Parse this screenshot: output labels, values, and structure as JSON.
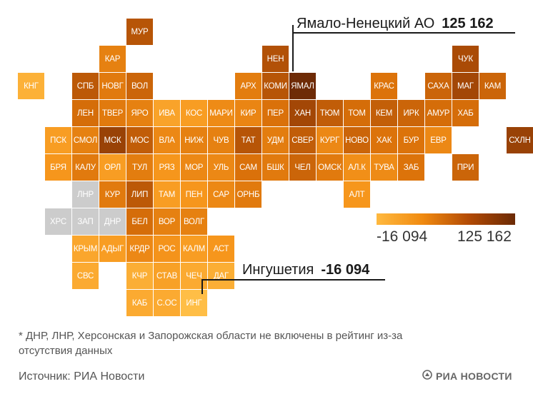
{
  "colors": {
    "missing": "#cccccc",
    "scale_low": "#ffb93f",
    "scale_high": "#6b2a05"
  },
  "regions": [
    {
      "label": "МУР",
      "tone": 0.7
    },
    {
      "label": "КАР",
      "tone": 0.45
    },
    {
      "label": "НЕН",
      "tone": 0.72
    },
    {
      "label": "ЧУК",
      "tone": 0.75
    },
    {
      "label": "КНГ",
      "tone": 0.1
    },
    {
      "label": "СПБ",
      "tone": 0.68
    },
    {
      "label": "НОВГ",
      "tone": 0.5
    },
    {
      "label": "ВОЛ",
      "tone": 0.62
    },
    {
      "label": "АРХ",
      "tone": 0.48
    },
    {
      "label": "КОМИ",
      "tone": 0.7
    },
    {
      "label": "ЯМАЛ",
      "tone": 1.0
    },
    {
      "label": "КРАС",
      "tone": 0.55
    },
    {
      "label": "САХА",
      "tone": 0.62
    },
    {
      "label": "МАГ",
      "tone": 0.78
    },
    {
      "label": "КАМ",
      "tone": 0.62
    },
    {
      "label": "ЛЕН",
      "tone": 0.58
    },
    {
      "label": "ТВЕР",
      "tone": 0.5
    },
    {
      "label": "ЯРО",
      "tone": 0.45
    },
    {
      "label": "ИВА",
      "tone": 0.2
    },
    {
      "label": "КОС",
      "tone": 0.25
    },
    {
      "label": "МАРИ",
      "tone": 0.38
    },
    {
      "label": "КИР",
      "tone": 0.42
    },
    {
      "label": "ПЕР",
      "tone": 0.56
    },
    {
      "label": "ХАН",
      "tone": 0.78
    },
    {
      "label": "ТЮМ",
      "tone": 0.66
    },
    {
      "label": "ТОМ",
      "tone": 0.58
    },
    {
      "label": "КЕМ",
      "tone": 0.65
    },
    {
      "label": "ИРК",
      "tone": 0.62
    },
    {
      "label": "АМУР",
      "tone": 0.58
    },
    {
      "label": "ХАБ",
      "tone": 0.58
    },
    {
      "label": "ПСК",
      "tone": 0.25
    },
    {
      "label": "СМОЛ",
      "tone": 0.45
    },
    {
      "label": "МСК",
      "tone": 0.82
    },
    {
      "label": "МОС",
      "tone": 0.66
    },
    {
      "label": "ВЛА",
      "tone": 0.4
    },
    {
      "label": "НИЖ",
      "tone": 0.45
    },
    {
      "label": "ЧУВ",
      "tone": 0.45
    },
    {
      "label": "ТАТ",
      "tone": 0.7
    },
    {
      "label": "УДМ",
      "tone": 0.48
    },
    {
      "label": "СВЕР",
      "tone": 0.66
    },
    {
      "label": "КУРГ",
      "tone": 0.4
    },
    {
      "label": "НОВО",
      "tone": 0.62
    },
    {
      "label": "ХАК",
      "tone": 0.55
    },
    {
      "label": "БУР",
      "tone": 0.55
    },
    {
      "label": "ЕВР",
      "tone": 0.4
    },
    {
      "label": "СХЛН",
      "tone": 0.82
    },
    {
      "label": "БРЯ",
      "tone": 0.3
    },
    {
      "label": "КАЛУ",
      "tone": 0.5
    },
    {
      "label": "ОРЛ",
      "tone": 0.25
    },
    {
      "label": "ТУЛ",
      "tone": 0.48
    },
    {
      "label": "РЯЗ",
      "tone": 0.3
    },
    {
      "label": "МОР",
      "tone": 0.4
    },
    {
      "label": "УЛЬ",
      "tone": 0.4
    },
    {
      "label": "САМ",
      "tone": 0.56
    },
    {
      "label": "БШК",
      "tone": 0.5
    },
    {
      "label": "ЧЕЛ",
      "tone": 0.62
    },
    {
      "label": "ОМСК",
      "tone": 0.5
    },
    {
      "label": "АЛ.К",
      "tone": 0.35
    },
    {
      "label": "ТУВА",
      "tone": 0.38
    },
    {
      "label": "ЗАБ",
      "tone": 0.55
    },
    {
      "label": "ПРИ",
      "tone": 0.62
    },
    {
      "label": "ЛНР",
      "tone": null
    },
    {
      "label": "КУР",
      "tone": 0.5
    },
    {
      "label": "ЛИП",
      "tone": 0.68
    },
    {
      "label": "ТАМ",
      "tone": 0.25
    },
    {
      "label": "ПЕН",
      "tone": 0.3
    },
    {
      "label": "САР",
      "tone": 0.4
    },
    {
      "label": "ОРНБ",
      "tone": 0.5
    },
    {
      "label": "АЛТ",
      "tone": 0.3
    },
    {
      "label": "ХРС",
      "tone": null
    },
    {
      "label": "ЗАП",
      "tone": null
    },
    {
      "label": "ДНР",
      "tone": null
    },
    {
      "label": "БЕЛ",
      "tone": 0.58
    },
    {
      "label": "ВОР",
      "tone": 0.45
    },
    {
      "label": "ВОЛГ",
      "tone": 0.45
    },
    {
      "label": "КРЫМ",
      "tone": 0.18
    },
    {
      "label": "АДЫГ",
      "tone": 0.25
    },
    {
      "label": "КРДР",
      "tone": 0.4
    },
    {
      "label": "РОС",
      "tone": 0.32
    },
    {
      "label": "КАЛМ",
      "tone": 0.25
    },
    {
      "label": "АСТ",
      "tone": 0.3
    },
    {
      "label": "СВС",
      "tone": 0.15
    },
    {
      "label": "КЧР",
      "tone": 0.12
    },
    {
      "label": "СТАВ",
      "tone": 0.22
    },
    {
      "label": "ЧЕЧ",
      "tone": 0.15
    },
    {
      "label": "ДАГ",
      "tone": 0.12
    },
    {
      "label": "КАБ",
      "tone": 0.15
    },
    {
      "label": "С.ОС",
      "tone": 0.15
    },
    {
      "label": "ИНГ",
      "tone": 0.0
    }
  ],
  "callouts": {
    "top": {
      "name": "Ямало-Ненецкий АО",
      "value": "125 162"
    },
    "bottom": {
      "name": "Ингушетия",
      "value": "-16 094"
    }
  },
  "legend": {
    "min": "-16 094",
    "max": "125 162"
  },
  "footnote": "* ДНР, ЛНР, Херсонская и Запорожская области не включены в рейтинг из-за отсутствия данных",
  "source": "Источник: РИА Новости",
  "logo": {
    "text": "РИА НОВОСТИ",
    "icon": "ria-logo-icon"
  }
}
